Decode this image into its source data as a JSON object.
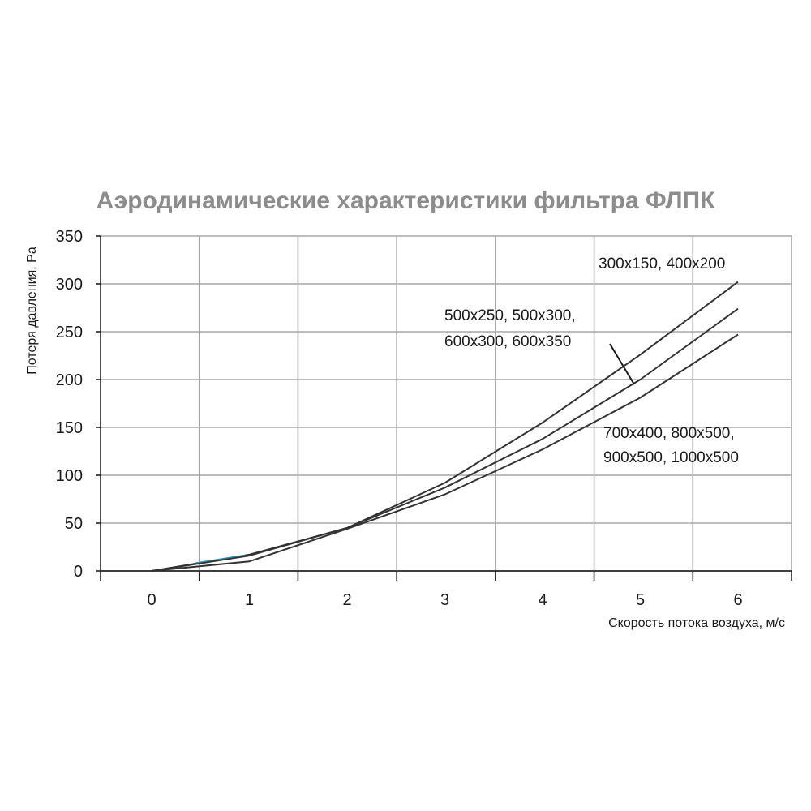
{
  "chart_data": {
    "type": "line",
    "title": "Аэродинамические характеристики фильтра ФЛПК",
    "xlabel": "Скорость потока воздуха, м/с",
    "ylabel": "Потеря давления, Pa",
    "xlim": [
      0,
      6
    ],
    "ylim": [
      0,
      350
    ],
    "xticks": [
      "0",
      "1",
      "2",
      "3",
      "4",
      "5",
      "6"
    ],
    "yticks": [
      "0",
      "50",
      "100",
      "150",
      "200",
      "250",
      "300",
      "350"
    ],
    "grid": true,
    "series": [
      {
        "name": "300x150, 400x200",
        "x": [
          0,
          1,
          2,
          3,
          4,
          5,
          6
        ],
        "y": [
          0,
          17,
          45,
          92,
          155,
          226,
          302
        ],
        "color": "#333333"
      },
      {
        "name": "500x250, 500x300, 600x300, 600x350",
        "x": [
          0,
          1,
          2,
          3,
          4,
          5,
          6
        ],
        "y": [
          0,
          16,
          45,
          87,
          138,
          200,
          274
        ],
        "color": "#333333"
      },
      {
        "name": "700x400, 800x500, 900x500, 1000x500",
        "x": [
          0,
          1,
          2,
          3,
          4,
          5,
          6
        ],
        "y": [
          0,
          10,
          44,
          80,
          127,
          181,
          247
        ],
        "color": "#333333"
      }
    ],
    "annotations": {
      "a1": "300x150, 400x200",
      "a2_line1": "500x250, 500x300,",
      "a2_line2": "600x300, 600x350",
      "a3_line1": "700x400, 800x500,",
      "a3_line2": "900x500, 1000x500"
    },
    "highlight_color": "#2a9bc4"
  }
}
